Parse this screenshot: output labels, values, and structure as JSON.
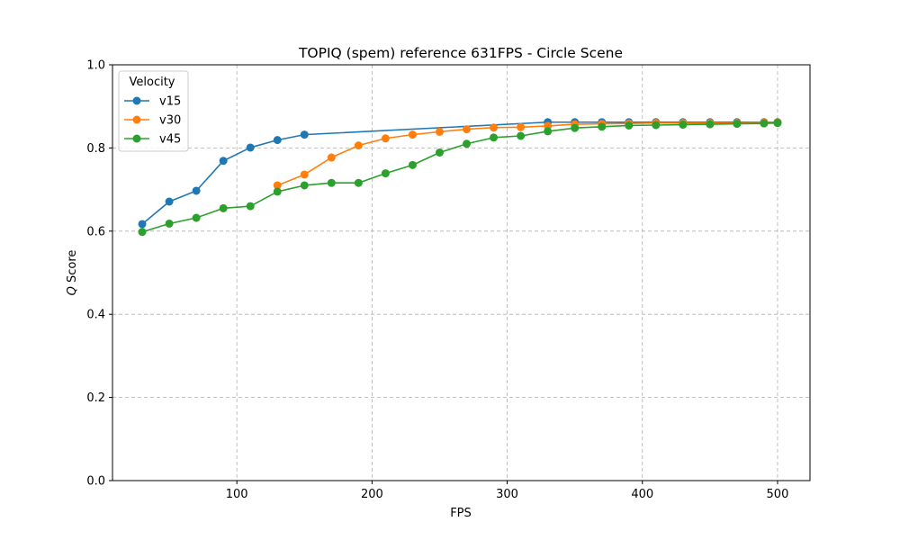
{
  "chart_data": {
    "type": "line",
    "title": "TOPIQ (spem) reference 631FPS - Circle Scene",
    "xlabel": "FPS",
    "ylabel_italic": "Q",
    "ylabel_rest": " Score",
    "xlim": [
      8,
      524
    ],
    "ylim": [
      0.0,
      1.0
    ],
    "xticks": [
      100,
      200,
      300,
      400,
      500
    ],
    "yticks": [
      0.0,
      0.2,
      0.4,
      0.6,
      0.8,
      1.0
    ],
    "xtick_labels": [
      "100",
      "200",
      "300",
      "400",
      "500"
    ],
    "ytick_labels": [
      "0.0",
      "0.2",
      "0.4",
      "0.6",
      "0.8",
      "1.0"
    ],
    "grid": true,
    "legend_title": "Velocity",
    "legend_position": "upper-left",
    "series": [
      {
        "name": "v15",
        "color": "#1f77b4",
        "x": [
          30,
          50,
          70,
          90,
          110,
          130,
          150,
          330,
          350,
          370,
          390,
          410,
          430,
          450,
          470,
          490,
          500
        ],
        "y": [
          0.617,
          0.671,
          0.697,
          0.769,
          0.801,
          0.819,
          0.832,
          0.862,
          0.862,
          0.862,
          0.862,
          0.862,
          0.862,
          0.862,
          0.862,
          0.862,
          0.862
        ]
      },
      {
        "name": "v30",
        "color": "#ff7f0e",
        "x": [
          130,
          150,
          170,
          190,
          210,
          230,
          250,
          270,
          290,
          310,
          330,
          350,
          370,
          390,
          410,
          430,
          450,
          470,
          490,
          500
        ],
        "y": [
          0.71,
          0.736,
          0.777,
          0.806,
          0.823,
          0.832,
          0.839,
          0.845,
          0.849,
          0.85,
          0.853,
          0.857,
          0.858,
          0.859,
          0.86,
          0.86,
          0.86,
          0.86,
          0.861,
          0.861
        ]
      },
      {
        "name": "v45",
        "color": "#2ca02c",
        "x": [
          30,
          50,
          70,
          90,
          110,
          130,
          150,
          170,
          190,
          210,
          230,
          250,
          270,
          290,
          310,
          330,
          350,
          370,
          390,
          410,
          430,
          450,
          470,
          490,
          500
        ],
        "y": [
          0.598,
          0.618,
          0.632,
          0.655,
          0.66,
          0.695,
          0.71,
          0.716,
          0.716,
          0.739,
          0.759,
          0.789,
          0.81,
          0.825,
          0.829,
          0.84,
          0.848,
          0.851,
          0.854,
          0.855,
          0.856,
          0.857,
          0.858,
          0.859,
          0.86
        ]
      }
    ]
  }
}
